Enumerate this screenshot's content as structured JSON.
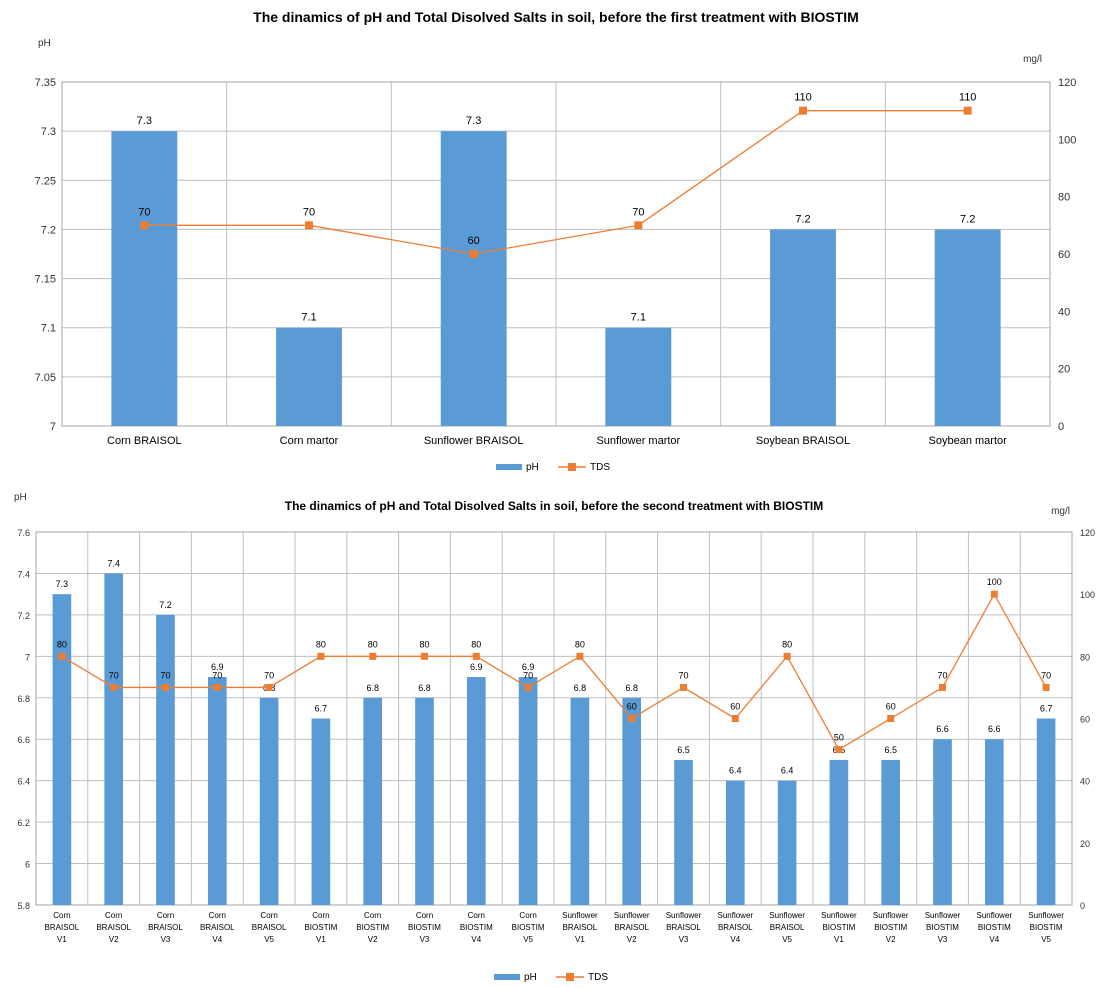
{
  "chart_data": [
    {
      "type": "bar",
      "title": "The dinamics of  pH and Total Disolved Salts in soil, before the first treatment with BIOSTIM",
      "ylabel": "pH",
      "y2label": "mg/l",
      "ylim": [
        7,
        7.35
      ],
      "y2lim": [
        0,
        120
      ],
      "yticks": [
        "7",
        "7.05",
        "7.1",
        "7.15",
        "7.2",
        "7.25",
        "7.3",
        "7.35"
      ],
      "y2ticks": [
        "0",
        "20",
        "40",
        "60",
        "80",
        "100",
        "120"
      ],
      "categories": [
        [
          "Corn BRAISOL"
        ],
        [
          "Corn martor"
        ],
        [
          "Sunflower BRAISOL"
        ],
        [
          "Sunflower martor"
        ],
        [
          "Soybean BRAISOL"
        ],
        [
          "Soybean martor"
        ]
      ],
      "grid": true,
      "legend_position": "bottom",
      "series": [
        {
          "name": "pH",
          "type": "bar",
          "axis": "left",
          "color": "#5b9bd5",
          "values": [
            7.3,
            7.1,
            7.3,
            7.1,
            7.2,
            7.2
          ],
          "labels": [
            "7.3",
            "7.1",
            "7.3",
            "7.1",
            "7.2",
            "7.2"
          ]
        },
        {
          "name": "TDS",
          "type": "line",
          "axis": "right",
          "color": "#ed7d31",
          "values": [
            70,
            70,
            60,
            70,
            110,
            110
          ],
          "labels": [
            "70",
            "70",
            "60",
            "70",
            "110",
            "110"
          ]
        }
      ]
    },
    {
      "type": "bar",
      "title": "The dinamics of pH and Total Disolved Salts in soil, before the second treatment with BIOSTIM",
      "ylabel": "pH",
      "y2label": "mg/l",
      "ylim": [
        5.8,
        7.6
      ],
      "y2lim": [
        0,
        120
      ],
      "yticks": [
        "5.8",
        "6",
        "6.2",
        "6.4",
        "6.6",
        "6.8",
        "7",
        "7.2",
        "7.4",
        "7.6"
      ],
      "y2ticks": [
        "0",
        "20",
        "40",
        "60",
        "80",
        "100",
        "120"
      ],
      "categories": [
        [
          "Corn",
          "BRAISOL",
          "V1"
        ],
        [
          "Corn",
          "BRAISOL",
          "V2"
        ],
        [
          "Corn",
          "BRAISOL",
          "V3"
        ],
        [
          "Corn",
          "BRAISOL",
          "V4"
        ],
        [
          "Corn",
          "BRAISOL",
          "V5"
        ],
        [
          "Corn",
          "BIOSTIM",
          "V1"
        ],
        [
          "Corn",
          "BIOSTIM",
          "V2"
        ],
        [
          "Corn",
          "BIOSTIM",
          "V3"
        ],
        [
          "Corn",
          "BIOSTIM",
          "V4"
        ],
        [
          "Corn",
          "BIOSTIM",
          "V5"
        ],
        [
          "Sunflower",
          "BRAISOL",
          "V1"
        ],
        [
          "Sunflower",
          "BRAISOL",
          "V2"
        ],
        [
          "Sunflower",
          "BRAISOL",
          "V3"
        ],
        [
          "Sunflower",
          "BRAISOL",
          "V4"
        ],
        [
          "Sunflower",
          "BRAISOL",
          "V5"
        ],
        [
          "Sunflower",
          "BIOSTIM",
          "V1"
        ],
        [
          "Sunflower",
          "BIOSTIM",
          "V2"
        ],
        [
          "Sunflower",
          "BIOSTIM",
          "V3"
        ],
        [
          "Sunflower",
          "BIOSTIM",
          "V4"
        ],
        [
          "Sunflower",
          "BIOSTIM",
          "V5"
        ]
      ],
      "grid": true,
      "legend_position": "bottom",
      "series": [
        {
          "name": "pH",
          "type": "bar",
          "axis": "left",
          "color": "#5b9bd5",
          "values": [
            7.3,
            7.4,
            7.2,
            6.9,
            6.8,
            6.7,
            6.8,
            6.8,
            6.9,
            6.9,
            6.8,
            6.8,
            6.5,
            6.4,
            6.4,
            6.5,
            6.5,
            6.6,
            6.6,
            6.7
          ],
          "labels": [
            "7.3",
            "7.4",
            "7.2",
            "6.9",
            "6.8",
            "6.7",
            "6.8",
            "6.8",
            "6.9",
            "6.9",
            "6.8",
            "6.8",
            "6.5",
            "6.4",
            "6.4",
            "6.5",
            "6.5",
            "6.6",
            "6.6",
            "6.7"
          ]
        },
        {
          "name": "TDS",
          "type": "line",
          "axis": "right",
          "color": "#ed7d31",
          "values": [
            80,
            70,
            70,
            70,
            70,
            80,
            80,
            80,
            80,
            70,
            80,
            60,
            70,
            60,
            80,
            50,
            60,
            70,
            100,
            70
          ],
          "labels": [
            "80",
            "70",
            "70",
            "70",
            "70",
            "80",
            "80",
            "80",
            "80",
            "70",
            "80",
            "60",
            "70",
            "60",
            "80",
            "50",
            "60",
            "70",
            "100",
            "70"
          ]
        }
      ]
    }
  ]
}
